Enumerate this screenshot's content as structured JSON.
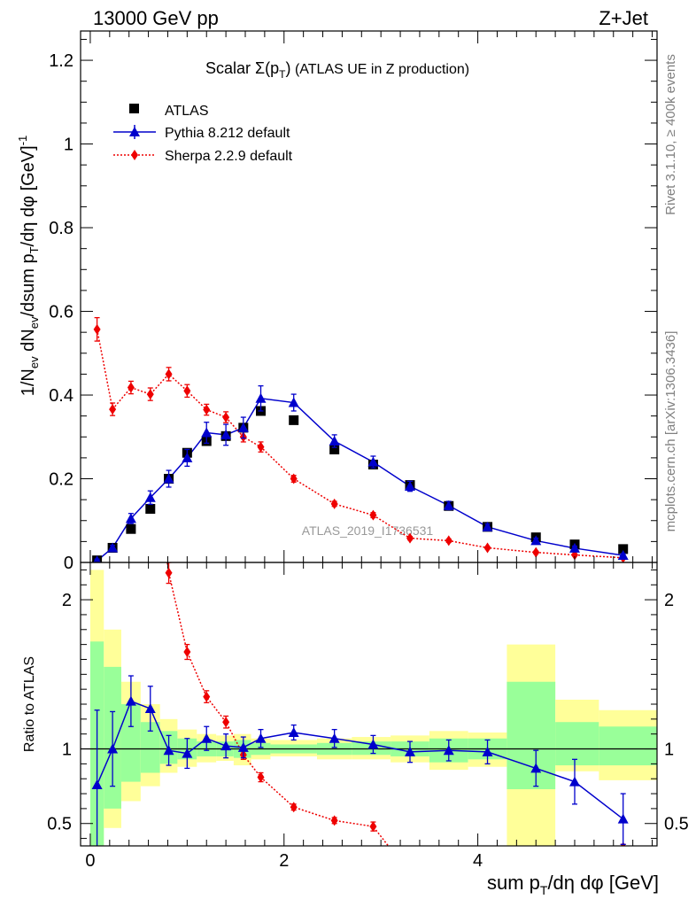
{
  "header": {
    "left": "13000 GeV pp",
    "right": "Z+Jet"
  },
  "side_labels": {
    "top": "Rivet 3.1.10, ≥ 400k events",
    "bottom": "mcplots.cern.ch [arXiv:1306.3436]"
  },
  "watermark": "ATLAS_2019_I1736531",
  "colors": {
    "ATLAS": "#000000",
    "Pythia": "#0000cc",
    "Sherpa": "#ee0000",
    "band_inner": "#99ff99",
    "band_outer": "#ffff99"
  },
  "chart_data": [
    {
      "type": "scatter",
      "panel": "main",
      "title": "Scalar Σ(pT) (ATLAS UE in Z production)",
      "title_parts": {
        "a": "Scalar ",
        "b": "Σ(p",
        "c": "T",
        "d": ")",
        "e": " (ATLAS UE in Z production)"
      },
      "ylabel": "1/Nev dNev/dsum pT/dη dφ [GeV]-1",
      "ylabel_parts": {
        "p1": "1/N",
        "p2": "ev",
        "p3": " dN",
        "p4": "ev",
        "p5": "/dsum p",
        "p6": "T",
        "p7": "/dη dφ  [GeV]",
        "p8": "-1"
      },
      "xlim": [
        -0.1,
        5.85
      ],
      "ylim": [
        0,
        1.27
      ],
      "yticks": [
        0,
        0.2,
        0.4,
        0.6,
        0.8,
        1,
        1.2
      ],
      "ytick_labels": [
        "0",
        "0.2",
        "0.4",
        "0.6",
        "0.8",
        "1",
        "1.2"
      ],
      "legend": [
        {
          "name": "ATLAS"
        },
        {
          "name": "Pythia 8.212 default"
        },
        {
          "name": "Sherpa 2.2.9 default"
        }
      ],
      "series": [
        {
          "name": "ATLAS",
          "marker": "square",
          "x": [
            0.07,
            0.23,
            0.42,
            0.62,
            0.81,
            1.0,
            1.2,
            1.4,
            1.58,
            1.76,
            2.1,
            2.52,
            2.92,
            3.3,
            3.7,
            4.1,
            4.6,
            5.0,
            5.5
          ],
          "y": [
            0.005,
            0.035,
            0.08,
            0.128,
            0.2,
            0.262,
            0.29,
            0.302,
            0.322,
            0.362,
            0.34,
            0.27,
            0.234,
            0.185,
            0.135,
            0.085,
            0.06,
            0.043,
            0.032
          ]
        },
        {
          "name": "Pythia 8.212 default",
          "marker": "triangle",
          "x": [
            0.07,
            0.23,
            0.42,
            0.62,
            0.81,
            1.0,
            1.2,
            1.4,
            1.58,
            1.76,
            2.1,
            2.52,
            2.92,
            3.3,
            3.7,
            4.1,
            4.6,
            5.0,
            5.5
          ],
          "y": [
            0.004,
            0.035,
            0.105,
            0.155,
            0.2,
            0.25,
            0.31,
            0.305,
            0.322,
            0.392,
            0.382,
            0.29,
            0.24,
            0.182,
            0.136,
            0.085,
            0.052,
            0.034,
            0.017
          ],
          "err": [
            0.004,
            0.006,
            0.012,
            0.016,
            0.02,
            0.02,
            0.025,
            0.025,
            0.025,
            0.03,
            0.02,
            0.015,
            0.014,
            0.012,
            0.01,
            0.007,
            0.006,
            0.005,
            0.004
          ]
        },
        {
          "name": "Sherpa 2.2.9 default",
          "marker": "diamond",
          "x": [
            0.07,
            0.23,
            0.42,
            0.62,
            0.81,
            1.0,
            1.2,
            1.4,
            1.58,
            1.76,
            2.1,
            2.52,
            2.92,
            3.3,
            3.7,
            4.1,
            4.6,
            5.0,
            5.5
          ],
          "y": [
            0.557,
            0.366,
            0.418,
            0.402,
            0.45,
            0.41,
            0.365,
            0.347,
            0.3,
            0.276,
            0.2,
            0.14,
            0.113,
            0.058,
            0.052,
            0.035,
            0.024,
            0.018,
            0.011
          ],
          "err": [
            0.028,
            0.015,
            0.015,
            0.015,
            0.016,
            0.015,
            0.013,
            0.013,
            0.012,
            0.012,
            0.008,
            0.006,
            0.006,
            0.004,
            0.004,
            0.003,
            0.003,
            0.002,
            0.002
          ]
        }
      ]
    },
    {
      "type": "scatter",
      "panel": "ratio",
      "ylabel": "Ratio to ATLAS",
      "xlabel": "sum pT/dη dφ [GeV]",
      "xlabel_parts": {
        "a": "sum p",
        "b": "T",
        "c": "/dη dφ [GeV]"
      },
      "xlim": [
        -0.1,
        5.85
      ],
      "ylim": [
        0.35,
        2.25
      ],
      "yticks": [
        0.5,
        1,
        2
      ],
      "ytick_labels": [
        "0.5",
        "1",
        "2"
      ],
      "xticks": [
        0,
        2,
        4
      ],
      "xtick_labels": [
        "0",
        "2",
        "4"
      ],
      "bins": [
        {
          "lo": 0.0,
          "hi": 0.14,
          "inner": [
            0.35,
            1.72
          ],
          "outer": [
            0.35,
            2.2
          ]
        },
        {
          "lo": 0.14,
          "hi": 0.32,
          "inner": [
            0.6,
            1.55
          ],
          "outer": [
            0.47,
            1.8
          ]
        },
        {
          "lo": 0.32,
          "hi": 0.52,
          "inner": [
            0.78,
            1.3
          ],
          "outer": [
            0.65,
            1.45
          ]
        },
        {
          "lo": 0.52,
          "hi": 0.72,
          "inner": [
            0.84,
            1.18
          ],
          "outer": [
            0.75,
            1.3
          ]
        },
        {
          "lo": 0.72,
          "hi": 0.9,
          "inner": [
            0.9,
            1.12
          ],
          "outer": [
            0.84,
            1.2
          ]
        },
        {
          "lo": 0.9,
          "hi": 1.1,
          "inner": [
            0.93,
            1.07
          ],
          "outer": [
            0.88,
            1.13
          ]
        },
        {
          "lo": 1.1,
          "hi": 1.3,
          "inner": [
            0.95,
            1.05
          ],
          "outer": [
            0.91,
            1.1
          ]
        },
        {
          "lo": 1.3,
          "hi": 1.48,
          "inner": [
            0.95,
            1.05
          ],
          "outer": [
            0.92,
            1.09
          ]
        },
        {
          "lo": 1.48,
          "hi": 1.66,
          "inner": [
            0.94,
            1.06
          ],
          "outer": [
            0.89,
            1.1
          ]
        },
        {
          "lo": 1.66,
          "hi": 1.86,
          "inner": [
            0.96,
            1.04
          ],
          "outer": [
            0.93,
            1.07
          ]
        },
        {
          "lo": 1.86,
          "hi": 2.34,
          "inner": [
            0.97,
            1.03
          ],
          "outer": [
            0.95,
            1.06
          ]
        },
        {
          "lo": 2.34,
          "hi": 2.7,
          "inner": [
            0.96,
            1.04
          ],
          "outer": [
            0.93,
            1.07
          ]
        },
        {
          "lo": 2.7,
          "hi": 3.1,
          "inner": [
            0.96,
            1.05
          ],
          "outer": [
            0.93,
            1.08
          ]
        },
        {
          "lo": 3.1,
          "hi": 3.5,
          "inner": [
            0.95,
            1.05
          ],
          "outer": [
            0.91,
            1.09
          ]
        },
        {
          "lo": 3.5,
          "hi": 3.9,
          "inner": [
            0.91,
            1.07
          ],
          "outer": [
            0.86,
            1.12
          ]
        },
        {
          "lo": 3.9,
          "hi": 4.3,
          "inner": [
            0.93,
            1.07
          ],
          "outer": [
            0.88,
            1.11
          ]
        },
        {
          "lo": 4.3,
          "hi": 4.8,
          "inner": [
            0.73,
            1.45
          ],
          "outer": [
            0.35,
            1.7
          ]
        },
        {
          "lo": 4.8,
          "hi": 5.25,
          "inner": [
            0.89,
            1.18
          ],
          "outer": [
            0.85,
            1.33
          ]
        },
        {
          "lo": 5.25,
          "hi": 5.85,
          "inner": [
            0.89,
            1.15
          ],
          "outer": [
            0.79,
            1.26
          ]
        }
      ],
      "series": [
        {
          "name": "Pythia 8.212 default",
          "marker": "triangle",
          "x": [
            0.07,
            0.23,
            0.42,
            0.62,
            0.81,
            1.0,
            1.2,
            1.4,
            1.58,
            1.76,
            2.1,
            2.52,
            2.92,
            3.3,
            3.7,
            4.1,
            4.6,
            5.0,
            5.5
          ],
          "y": [
            0.76,
            1.0,
            1.32,
            1.27,
            0.99,
            0.97,
            1.07,
            1.02,
            1.01,
            1.07,
            1.11,
            1.07,
            1.03,
            0.98,
            0.99,
            0.98,
            0.87,
            0.78,
            0.53
          ],
          "err": [
            0.5,
            0.25,
            0.17,
            0.15,
            0.1,
            0.1,
            0.08,
            0.08,
            0.07,
            0.06,
            0.05,
            0.06,
            0.06,
            0.07,
            0.07,
            0.08,
            0.12,
            0.15,
            0.17
          ]
        },
        {
          "name": "Sherpa 2.2.9 default",
          "marker": "diamond",
          "x": [
            0.81,
            1.0,
            1.2,
            1.4,
            1.58,
            1.76,
            2.1,
            2.52,
            2.92,
            5.5
          ],
          "y": [
            2.18,
            1.65,
            1.35,
            1.18,
            0.96,
            0.81,
            0.61,
            0.52,
            0.48,
            0.34
          ],
          "err": [
            0.07,
            0.05,
            0.04,
            0.04,
            0.03,
            0.03,
            0.02,
            0.02,
            0.03,
            0.02
          ],
          "line_tail": [
            3.1,
            0.33
          ]
        }
      ]
    }
  ]
}
